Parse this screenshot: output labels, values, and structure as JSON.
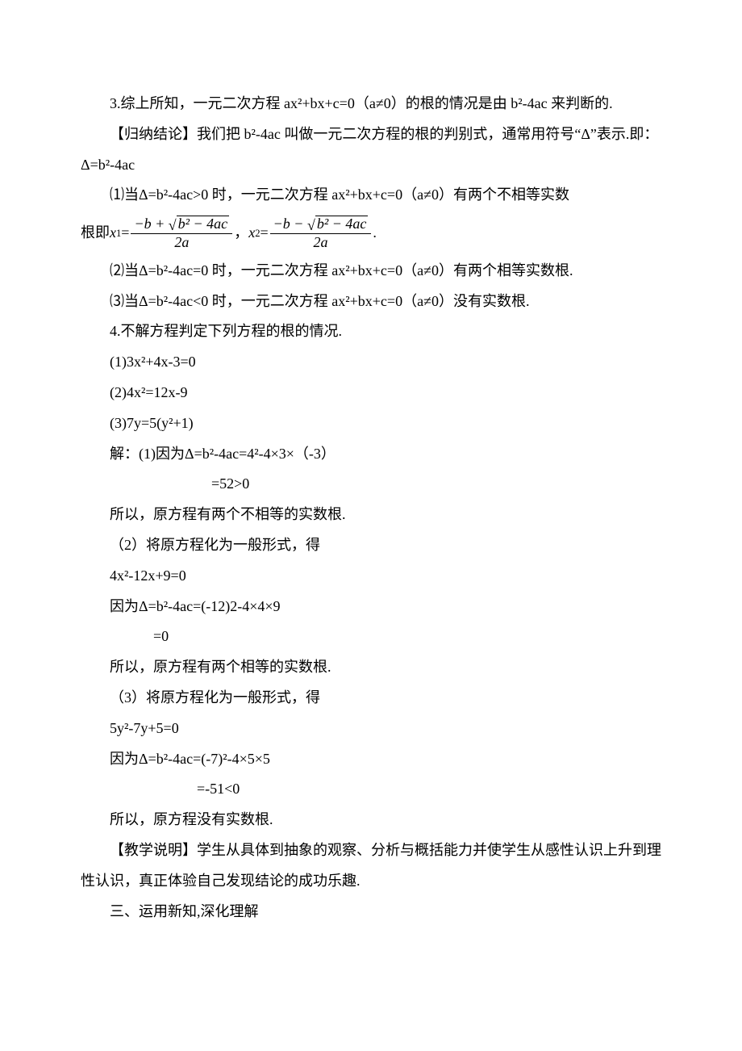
{
  "p1": "3.综上所知，一元二次方程 ax²+bx+c=0（a≠0）的根的情况是由 b²-4ac 来判断的.",
  "p2": "【归纳结论】我们把 b²-4ac 叫做一元二次方程的根的判别式，通常用符号“Δ”表示.即：Δ=b²-4ac",
  "p3": "⑴当Δ=b²-4ac>0 时，一元二次方程 ax²+bx+c=0（a≠0）有两个不相等实数",
  "p3b_prefix": "根即",
  "p3b_mid": "，  ",
  "p3b_suffix": " .",
  "formula": {
    "x1_sub": "1",
    "x2_sub": "2",
    "num1_pre": "−b + ",
    "num2_pre": "−b − ",
    "rad": "b² − 4ac",
    "den": "2a"
  },
  "p4": "⑵当Δ=b²-4ac=0 时，一元二次方程 ax²+bx+c=0（a≠0）有两个相等实数根.",
  "p5": "⑶当Δ=b²-4ac<0 时，一元二次方程 ax²+bx+c=0（a≠0）没有实数根.",
  "p6": "4.不解方程判定下列方程的根的情况.",
  "p7": "(1)3x²+4x-3=0",
  "p8": "(2)4x²=12x-9",
  "p9": "(3)7y=5(y²+1)",
  "p10": "解：(1)因为Δ=b²-4ac=4²-4×3×（-3）",
  "p11": "=52>0",
  "p12": "所以，原方程有两个不相等的实数根.",
  "p13": "（2）将原方程化为一般形式，得",
  "p14": "4x²-12x+9=0",
  "p15": "因为Δ=b²-4ac=(-12)2-4×4×9",
  "p16": "=0",
  "p17": "所以，原方程有两个相等的实数根.",
  "p18": "（3）将原方程化为一般形式，得",
  "p19": "5y²-7y+5=0",
  "p20": "因为Δ=b²-4ac=(-7)²-4×5×5",
  "p21": "=-51<0",
  "p22": "所以，原方程没有实数根.",
  "p23": "【教学说明】学生从具体到抽象的观察、分析与概括能力并使学生从感性认识上升到理性认识，真正体验自己发现结论的成功乐趣.",
  "p24": "三、运用新知,深化理解",
  "indent_calc1": "　　　　　　　　　",
  "indent_calc2": "　　　　　",
  "indent_calc3": "　　　　　　　　"
}
